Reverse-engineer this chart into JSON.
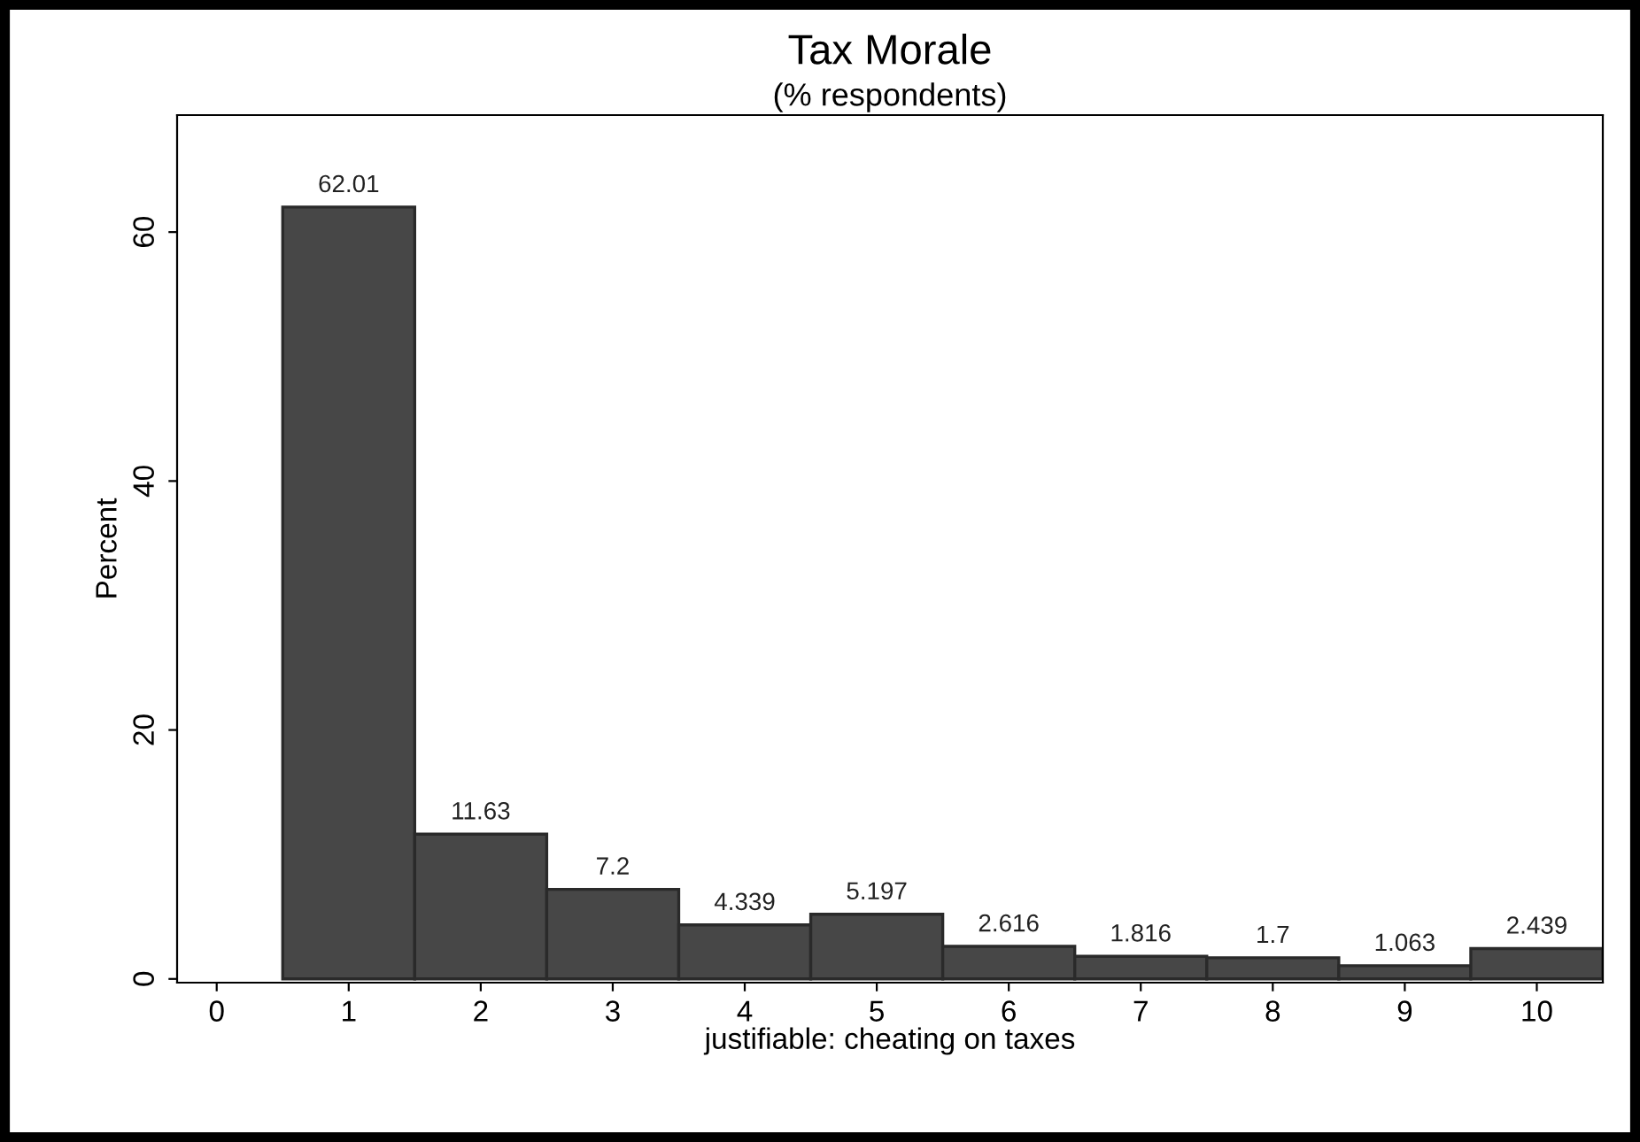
{
  "chart_data": {
    "type": "histogram",
    "title": "Tax Morale",
    "subtitle": "(% respondents)",
    "xlabel": "justifiable: cheating on taxes",
    "ylabel": "Percent",
    "bins": [
      0.5,
      1.5,
      2.5,
      3.5,
      4.5,
      5.5,
      6.5,
      7.5,
      8.5,
      9.5,
      10.5
    ],
    "values": [
      62.01,
      11.63,
      7.2,
      4.339,
      5.197,
      2.616,
      1.816,
      1.7,
      1.063,
      2.439
    ],
    "color": "#474747",
    "data_labels": true,
    "grid": false,
    "xlim": [
      -0.3,
      10.5
    ],
    "xticks": [
      0,
      1,
      2,
      3,
      4,
      5,
      6,
      7,
      8,
      9,
      10
    ],
    "ylim": [
      -0.3,
      69.4
    ],
    "yticks": [
      0,
      20,
      40,
      60
    ]
  }
}
